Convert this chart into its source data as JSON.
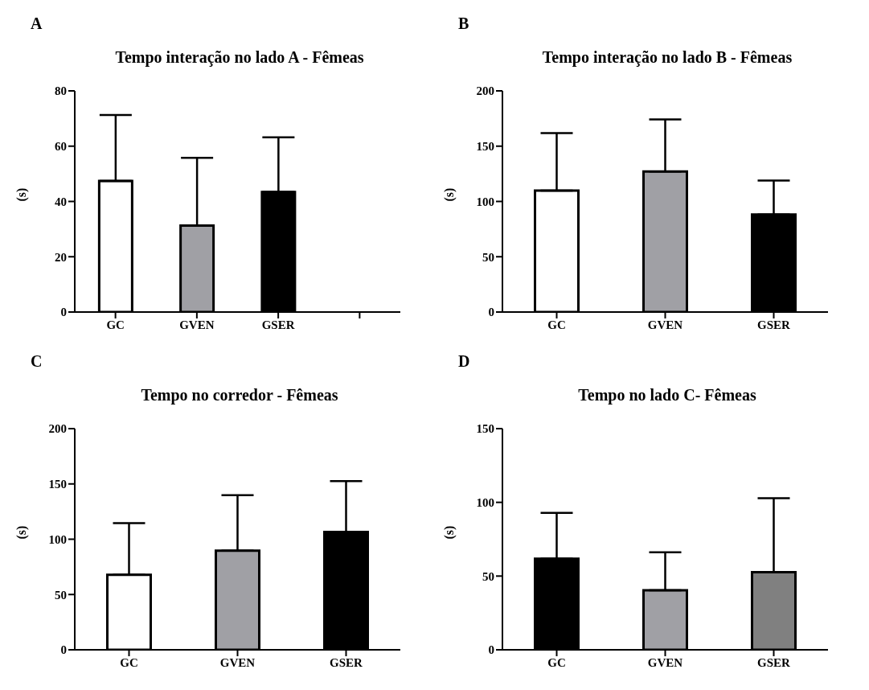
{
  "chart_data": [
    {
      "type": "bar",
      "title": "Tempo interação no lado A - Fêmeas",
      "ylabel": "(s)",
      "annotations": [
        "A"
      ],
      "categories": [
        "GC",
        "GVEN",
        "GSER",
        null
      ],
      "values": [
        47.4,
        31.3,
        43.4,
        null
      ],
      "errors": [
        [
          47.4,
          71.3
        ],
        [
          31.3,
          55.8
        ],
        [
          43.4,
          63.2
        ],
        null
      ],
      "colors": [
        "#ffffff",
        "#a0a0a5",
        "#000000",
        "#000000"
      ],
      "ylim": [
        0,
        80
      ],
      "yticks": [
        0,
        20,
        40,
        60,
        80
      ]
    },
    {
      "type": "bar",
      "title": "Tempo interação no lado B - Fêmeas",
      "ylabel": "(s)",
      "annotations": [
        "B"
      ],
      "categories": [
        "GC",
        "GVEN",
        "GSER"
      ],
      "values": [
        109.8,
        127.1,
        88.2
      ],
      "errors": [
        [
          109.8,
          161.8
        ],
        [
          127.1,
          174.1
        ],
        [
          88.2,
          118.9
        ]
      ],
      "colors": [
        "#ffffff",
        "#a0a0a5",
        "#000000"
      ],
      "ylim": [
        0,
        200
      ],
      "yticks": [
        0,
        50,
        100,
        150,
        200
      ]
    },
    {
      "type": "bar",
      "title": "Tempo no corredor -  Fêmeas",
      "ylabel": "(s)",
      "annotations": [
        "C"
      ],
      "categories": [
        "GC",
        "GVEN",
        "GSER"
      ],
      "values": [
        67.9,
        89.7,
        106.5
      ],
      "errors": [
        [
          67.9,
          114.6
        ],
        [
          89.7,
          139.8
        ],
        [
          106.5,
          152.5
        ]
      ],
      "colors": [
        "#ffffff",
        "#a0a0a5",
        "#000000"
      ],
      "ylim": [
        0,
        200
      ],
      "yticks": [
        0,
        50,
        100,
        150,
        200
      ]
    },
    {
      "type": "bar",
      "title": "Tempo no lado C- Fêmeas",
      "ylabel": "(s)",
      "annotations": [
        "D"
      ],
      "categories": [
        "GC",
        "GVEN",
        "GSER"
      ],
      "values": [
        61.8,
        40.4,
        52.6
      ],
      "errors": [
        [
          61.8,
          92.8
        ],
        [
          40.4,
          66.1
        ],
        [
          52.6,
          102.8
        ]
      ],
      "colors": [
        "#000000",
        "#a0a0a5",
        "#808080"
      ],
      "ylim": [
        0,
        150
      ],
      "yticks": [
        0,
        50,
        100,
        150
      ]
    }
  ]
}
